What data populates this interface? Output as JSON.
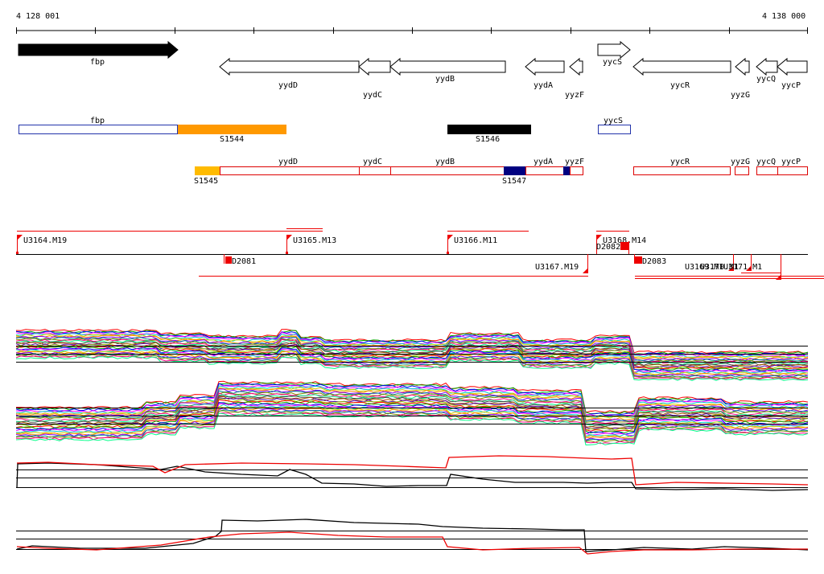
{
  "ruler": {
    "start_label": "4 128 001",
    "end_label": "4 138 000"
  },
  "genes": [
    {
      "name": "fbp",
      "strand": "+",
      "filled": true
    },
    {
      "name": "yydD",
      "strand": "-"
    },
    {
      "name": "yydC",
      "strand": "-"
    },
    {
      "name": "yydB",
      "strand": "-"
    },
    {
      "name": "yydA",
      "strand": "-"
    },
    {
      "name": "yyzF",
      "strand": "-"
    },
    {
      "name": "yycS",
      "strand": "+"
    },
    {
      "name": "yycR",
      "strand": "-"
    },
    {
      "name": "yyzG",
      "strand": "-"
    },
    {
      "name": "yycQ",
      "strand": "-"
    },
    {
      "name": "yycP",
      "strand": "-"
    }
  ],
  "forward_boxes": [
    {
      "name": "fbp",
      "color": "#2233aa",
      "filled": false
    },
    {
      "name": "S1544",
      "color": "#ff9900",
      "filled": true
    },
    {
      "name": "S1546",
      "color": "#000000",
      "filled": true
    },
    {
      "name": "yycS",
      "color": "#2233aa",
      "filled": false
    }
  ],
  "reverse_boxes": [
    {
      "name": "S1545",
      "color": "#ffbb00",
      "filled": true
    },
    {
      "name": "yydD",
      "color": "#dd0000",
      "filled": false
    },
    {
      "name": "yydC",
      "color": "#dd0000",
      "filled": false
    },
    {
      "name": "yydB",
      "color": "#dd0000",
      "filled": false
    },
    {
      "name": "S1547",
      "color": "#000080",
      "filled": true
    },
    {
      "name": "yydA",
      "color": "#dd0000",
      "filled": false
    },
    {
      "name": "yyzF",
      "color": "#dd0000",
      "filled": false
    },
    {
      "name": "yycR",
      "color": "#dd0000",
      "filled": false
    },
    {
      "name": "yyzG",
      "color": "#dd0000",
      "filled": false
    },
    {
      "name": "yycQ",
      "color": "#dd0000",
      "filled": false
    },
    {
      "name": "yycP",
      "color": "#dd0000",
      "filled": false
    }
  ],
  "transcripts_top": [
    "U3164.M19",
    "U3165.M13",
    "U3166.M11",
    "U3168.M14"
  ],
  "transcripts_bottom": [
    "D2081",
    "U3167.M19",
    "D2082",
    "D2083",
    "U3169.M1",
    "U3170.M1",
    "U3171.M1"
  ],
  "colors": {
    "accent_red": "#ee0000",
    "orange": "#ff9900",
    "navy": "#000080"
  }
}
